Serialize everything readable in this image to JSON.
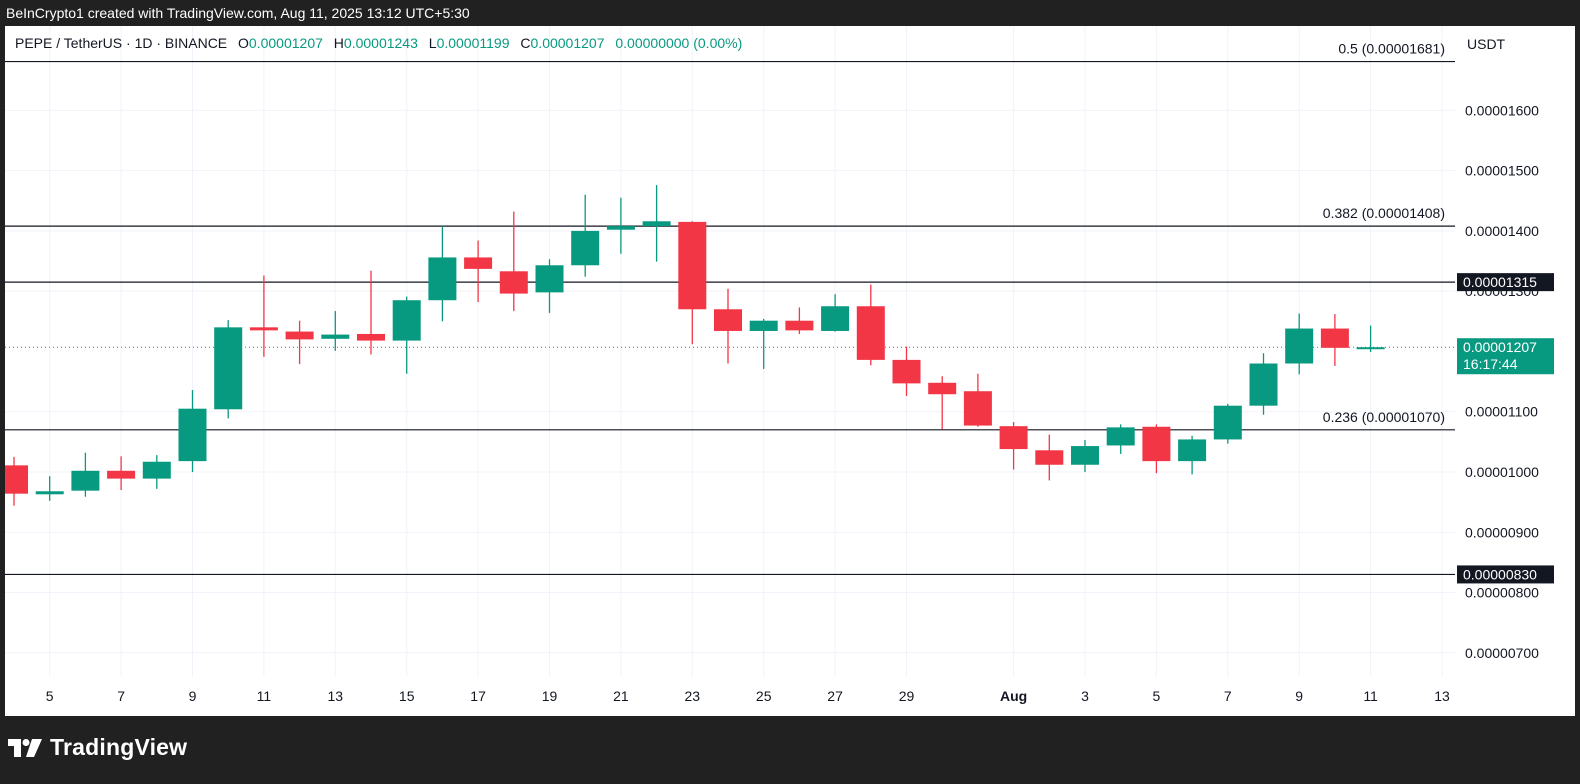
{
  "header": {
    "attribution": "BeInCrypto1 created with TradingView.com, Aug 11, 2025 13:12 UTC+5:30"
  },
  "legend": {
    "symbol": "PEPE / TetherUS · 1D · BINANCE",
    "o_label": "O",
    "o_value": "0.00001207",
    "h_label": "H",
    "h_value": "0.00001243",
    "l_label": "L",
    "l_value": "0.00001199",
    "c_label": "C",
    "c_value": "0.00001207",
    "change": "0.00000000 (0.00%)"
  },
  "footer": {
    "brand": "TradingView"
  },
  "chart_data": {
    "type": "candlestick",
    "currency": "USDT",
    "colors": {
      "up": "#089981",
      "down": "#f23645",
      "grid": "#f0f3fa",
      "axis_text": "#131722",
      "hline": "#131722"
    },
    "y_range": [
      6.2e-06,
      1.74e-05
    ],
    "y_ticks": [
      {
        "value": 1.6e-05,
        "label": "0.00001600"
      },
      {
        "value": 1.5e-05,
        "label": "0.00001500"
      },
      {
        "value": 1.4e-05,
        "label": "0.00001400"
      },
      {
        "value": 1.3e-05,
        "label": "0.00001300"
      },
      {
        "value": 1.1e-05,
        "label": "0.00001100"
      },
      {
        "value": 1e-05,
        "label": "0.00001000"
      },
      {
        "value": 9e-06,
        "label": "0.00000900"
      },
      {
        "value": 8e-06,
        "label": "0.00000800"
      },
      {
        "value": 7e-06,
        "label": "0.00000700"
      }
    ],
    "x_ticks": [
      {
        "idx": 1,
        "label": "5"
      },
      {
        "idx": 3,
        "label": "7"
      },
      {
        "idx": 5,
        "label": "9"
      },
      {
        "idx": 7,
        "label": "11"
      },
      {
        "idx": 9,
        "label": "13"
      },
      {
        "idx": 11,
        "label": "15"
      },
      {
        "idx": 13,
        "label": "17"
      },
      {
        "idx": 15,
        "label": "19"
      },
      {
        "idx": 17,
        "label": "21"
      },
      {
        "idx": 19,
        "label": "23"
      },
      {
        "idx": 21,
        "label": "25"
      },
      {
        "idx": 23,
        "label": "27"
      },
      {
        "idx": 25,
        "label": "29"
      },
      {
        "idx": 28,
        "label": "Aug"
      },
      {
        "idx": 30,
        "label": "3"
      },
      {
        "idx": 32,
        "label": "5"
      },
      {
        "idx": 34,
        "label": "7"
      },
      {
        "idx": 36,
        "label": "9"
      },
      {
        "idx": 38,
        "label": "11"
      },
      {
        "idx": 40,
        "label": "13"
      }
    ],
    "horizontal_lines": [
      {
        "value": 1.681e-05,
        "label": "0.5 (0.00001681)",
        "boxed": false
      },
      {
        "value": 1.408e-05,
        "label": "0.382 (0.00001408)",
        "boxed": false
      },
      {
        "value": 1.315e-05,
        "label": "0.00001315",
        "boxed": true
      },
      {
        "value": 1.07e-05,
        "label": "0.236 (0.00001070)",
        "boxed": false
      },
      {
        "value": 8.3e-06,
        "label": "0.00000830",
        "boxed": true
      }
    ],
    "last_price": {
      "value": 1.207e-05,
      "label": "0.00001207",
      "countdown": "16:17:44"
    },
    "candles": [
      {
        "o": 1.011e-05,
        "h": 1.025e-05,
        "l": 9.44e-06,
        "c": 9.64e-06
      },
      {
        "o": 9.63e-06,
        "h": 9.93e-06,
        "l": 9.52e-06,
        "c": 9.68e-06
      },
      {
        "o": 9.69e-06,
        "h": 1.032e-05,
        "l": 9.59e-06,
        "c": 1.002e-05
      },
      {
        "o": 1.002e-05,
        "h": 1.026e-05,
        "l": 9.7e-06,
        "c": 9.89e-06
      },
      {
        "o": 9.89e-06,
        "h": 1.028e-05,
        "l": 9.72e-06,
        "c": 1.017e-05
      },
      {
        "o": 1.018e-05,
        "h": 1.136e-05,
        "l": 1e-05,
        "c": 1.105e-05
      },
      {
        "o": 1.104e-05,
        "h": 1.252e-05,
        "l": 1.089e-05,
        "c": 1.24e-05
      },
      {
        "o": 1.24e-05,
        "h": 1.326e-05,
        "l": 1.191e-05,
        "c": 1.235e-05
      },
      {
        "o": 1.233e-05,
        "h": 1.251e-05,
        "l": 1.179e-05,
        "c": 1.22e-05
      },
      {
        "o": 1.221e-05,
        "h": 1.267e-05,
        "l": 1.201e-05,
        "c": 1.228e-05
      },
      {
        "o": 1.229e-05,
        "h": 1.334e-05,
        "l": 1.195e-05,
        "c": 1.218e-05
      },
      {
        "o": 1.218e-05,
        "h": 1.291e-05,
        "l": 1.163e-05,
        "c": 1.285e-05
      },
      {
        "o": 1.285e-05,
        "h": 1.408e-05,
        "l": 1.25e-05,
        "c": 1.356e-05
      },
      {
        "o": 1.356e-05,
        "h": 1.384e-05,
        "l": 1.282e-05,
        "c": 1.337e-05
      },
      {
        "o": 1.333e-05,
        "h": 1.432e-05,
        "l": 1.267e-05,
        "c": 1.296e-05
      },
      {
        "o": 1.298e-05,
        "h": 1.353e-05,
        "l": 1.264e-05,
        "c": 1.343e-05
      },
      {
        "o": 1.343e-05,
        "h": 1.46e-05,
        "l": 1.324e-05,
        "c": 1.4e-05
      },
      {
        "o": 1.402e-05,
        "h": 1.455e-05,
        "l": 1.362e-05,
        "c": 1.408e-05
      },
      {
        "o": 1.408e-05,
        "h": 1.476e-05,
        "l": 1.349e-05,
        "c": 1.416e-05
      },
      {
        "o": 1.415e-05,
        "h": 1.416e-05,
        "l": 1.212e-05,
        "c": 1.27e-05
      },
      {
        "o": 1.27e-05,
        "h": 1.304e-05,
        "l": 1.18e-05,
        "c": 1.234e-05
      },
      {
        "o": 1.234e-05,
        "h": 1.254e-05,
        "l": 1.171e-05,
        "c": 1.251e-05
      },
      {
        "o": 1.251e-05,
        "h": 1.273e-05,
        "l": 1.229e-05,
        "c": 1.235e-05
      },
      {
        "o": 1.234e-05,
        "h": 1.295e-05,
        "l": 1.233e-05,
        "c": 1.275e-05
      },
      {
        "o": 1.275e-05,
        "h": 1.311e-05,
        "l": 1.177e-05,
        "c": 1.186e-05
      },
      {
        "o": 1.186e-05,
        "h": 1.208e-05,
        "l": 1.126e-05,
        "c": 1.147e-05
      },
      {
        "o": 1.148e-05,
        "h": 1.159e-05,
        "l": 1.071e-05,
        "c": 1.129e-05
      },
      {
        "o": 1.134e-05,
        "h": 1.163e-05,
        "l": 1.075e-05,
        "c": 1.077e-05
      },
      {
        "o": 1.076e-05,
        "h": 1.083e-05,
        "l": 1.004e-05,
        "c": 1.038e-05
      },
      {
        "o": 1.036e-05,
        "h": 1.062e-05,
        "l": 9.86e-06,
        "c": 1.012e-05
      },
      {
        "o": 1.012e-05,
        "h": 1.053e-05,
        "l": 1e-05,
        "c": 1.043e-05
      },
      {
        "o": 1.044e-05,
        "h": 1.079e-05,
        "l": 1.03e-05,
        "c": 1.074e-05
      },
      {
        "o": 1.075e-05,
        "h": 1.079e-05,
        "l": 9.98e-06,
        "c": 1.018e-05
      },
      {
        "o": 1.018e-05,
        "h": 1.06e-05,
        "l": 9.96e-06,
        "c": 1.054e-05
      },
      {
        "o": 1.054e-05,
        "h": 1.113e-05,
        "l": 1.047e-05,
        "c": 1.11e-05
      },
      {
        "o": 1.11e-05,
        "h": 1.197e-05,
        "l": 1.095e-05,
        "c": 1.18e-05
      },
      {
        "o": 1.18e-05,
        "h": 1.263e-05,
        "l": 1.162e-05,
        "c": 1.238e-05
      },
      {
        "o": 1.238e-05,
        "h": 1.262e-05,
        "l": 1.176e-05,
        "c": 1.206e-05
      },
      {
        "o": 1.207e-05,
        "h": 1.243e-05,
        "l": 1.199e-05,
        "c": 1.207e-05
      }
    ]
  }
}
